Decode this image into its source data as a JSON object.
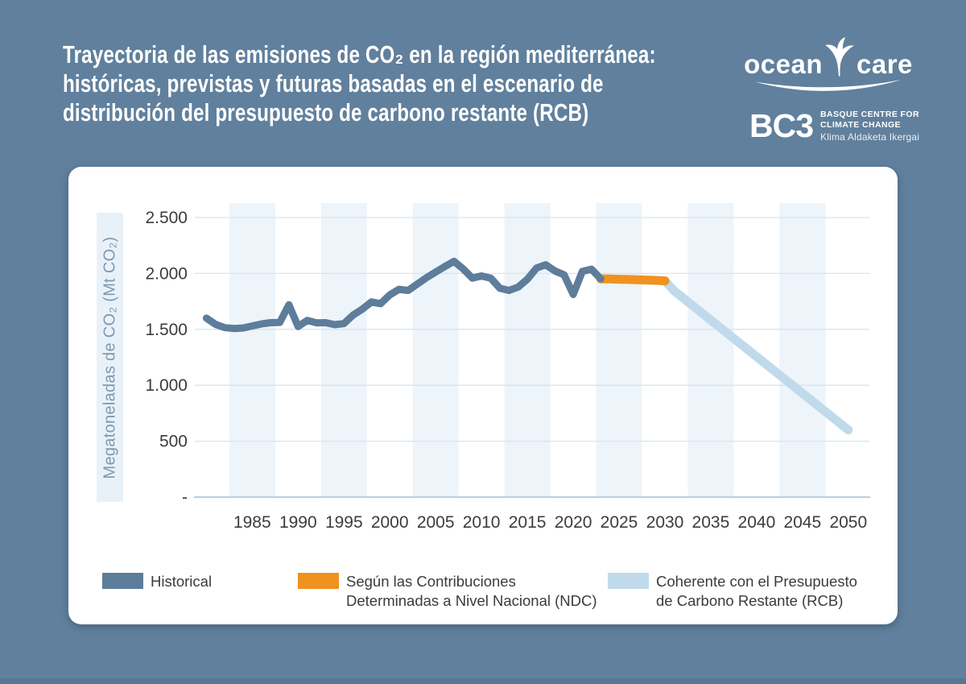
{
  "page": {
    "background_color": "#60809d",
    "card_color": "#ffffff",
    "bottom_bar_color": "#587795"
  },
  "header": {
    "title_lines": [
      "Trayectoria de las emisiones de CO₂ en la región mediterránea:",
      "históricas, previstas y futuras basadas en el escenario de",
      "distribución del presupuesto de carbono restante (RCB)"
    ],
    "oceancare_logo": {
      "word1": "ocean",
      "word2": "care",
      "icon": "whale-tail-icon"
    },
    "bc3_logo": {
      "acronym": "BC3",
      "line1": "BASQUE CENTRE FOR",
      "line2": "CLIMATE CHANGE",
      "line3": "Klima Aldaketa Ikergai"
    }
  },
  "chart_data": {
    "type": "line",
    "title": "Trayectoria de las emisiones de CO₂ en la región mediterránea: históricas, previstas y futuras basadas en el escenario de distribución del presupuesto de carbono restante (RCB)",
    "xlabel": "",
    "ylabel": "Megatoneladas de CO₂ (Mt CO₂)",
    "ylim": [
      0,
      2500
    ],
    "xlim": [
      1979,
      2052.3
    ],
    "grid": "horizontal",
    "legend_position": "bottom",
    "yticks": {
      "values": [
        2500,
        2000,
        1500,
        1000,
        500,
        0
      ],
      "labels": [
        "2.500",
        "2.000",
        "1.500",
        "1.000",
        "500",
        "-"
      ]
    },
    "xticks": [
      1985,
      1990,
      1995,
      2000,
      2005,
      2010,
      2015,
      2020,
      2025,
      2030,
      2035,
      2040,
      2045,
      2050
    ],
    "background": {
      "stripe_centers": [
        1985,
        1995,
        2005,
        2015,
        2025,
        2035,
        2045
      ],
      "stripe_halfwidth": 2.5,
      "stripe_color": "#edf4fa",
      "gridline_color": "#d8e5ed",
      "axis_color": "#b9cfdc"
    },
    "series": [
      {
        "id": "historical",
        "name": "Historical",
        "color": "#5d7d9a",
        "stroke_width": 9,
        "years": [
          1980,
          1981,
          1982,
          1983,
          1984,
          1985,
          1986,
          1987,
          1988,
          1989,
          1990,
          1991,
          1992,
          1993,
          1994,
          1995,
          1996,
          1997,
          1998,
          1999,
          2000,
          2001,
          2002,
          2003,
          2004,
          2005,
          2006,
          2007,
          2008,
          2009,
          2010,
          2011,
          2012,
          2013,
          2014,
          2015,
          2016,
          2017,
          2018,
          2019,
          2020,
          2021,
          2022,
          2023
        ],
        "values": [
          1600,
          1545,
          1515,
          1508,
          1512,
          1530,
          1548,
          1560,
          1562,
          1720,
          1525,
          1580,
          1558,
          1560,
          1542,
          1552,
          1628,
          1680,
          1745,
          1730,
          1808,
          1858,
          1848,
          1905,
          1962,
          2012,
          2062,
          2108,
          2040,
          1958,
          1978,
          1958,
          1868,
          1848,
          1878,
          1948,
          2048,
          2078,
          2022,
          1988,
          1812,
          2018,
          2038,
          1952
        ]
      },
      {
        "id": "ndc",
        "name": "Según las Contribuciones Determinadas a Nivel Nacional (NDC)",
        "color": "#f0921f",
        "stroke_width": 11,
        "years": [
          2023,
          2024,
          2025,
          2026,
          2027,
          2028,
          2029,
          2030
        ],
        "values": [
          1952,
          1950,
          1948,
          1946,
          1944,
          1941,
          1938,
          1934
        ]
      },
      {
        "id": "rcb",
        "name": "Coherente con el Presupuesto de Carbono Restante (RCB)",
        "color": "#c0daec",
        "stroke_width": 11,
        "years": [
          2030,
          2031,
          2032,
          2033,
          2034,
          2035,
          2036,
          2037,
          2038,
          2039,
          2040,
          2041,
          2042,
          2043,
          2044,
          2045,
          2046,
          2047,
          2048,
          2049,
          2050
        ],
        "values": [
          1934,
          1845,
          1780,
          1714,
          1649,
          1583,
          1518,
          1452,
          1387,
          1321,
          1256,
          1190,
          1125,
          1059,
          994,
          928,
          863,
          797,
          732,
          666,
          600
        ]
      }
    ]
  },
  "legend": {
    "items": [
      {
        "id": "historical",
        "color": "#5d7d9a",
        "label_lines": [
          "Historical"
        ]
      },
      {
        "id": "ndc",
        "color": "#f0921f",
        "label_lines": [
          "Según las Contribuciones",
          "Determinadas a Nivel Nacional (NDC)"
        ]
      },
      {
        "id": "rcb",
        "color": "#c0daec",
        "label_lines": [
          "Coherente con el Presupuesto",
          "de Carbono Restante (RCB)"
        ]
      }
    ]
  }
}
